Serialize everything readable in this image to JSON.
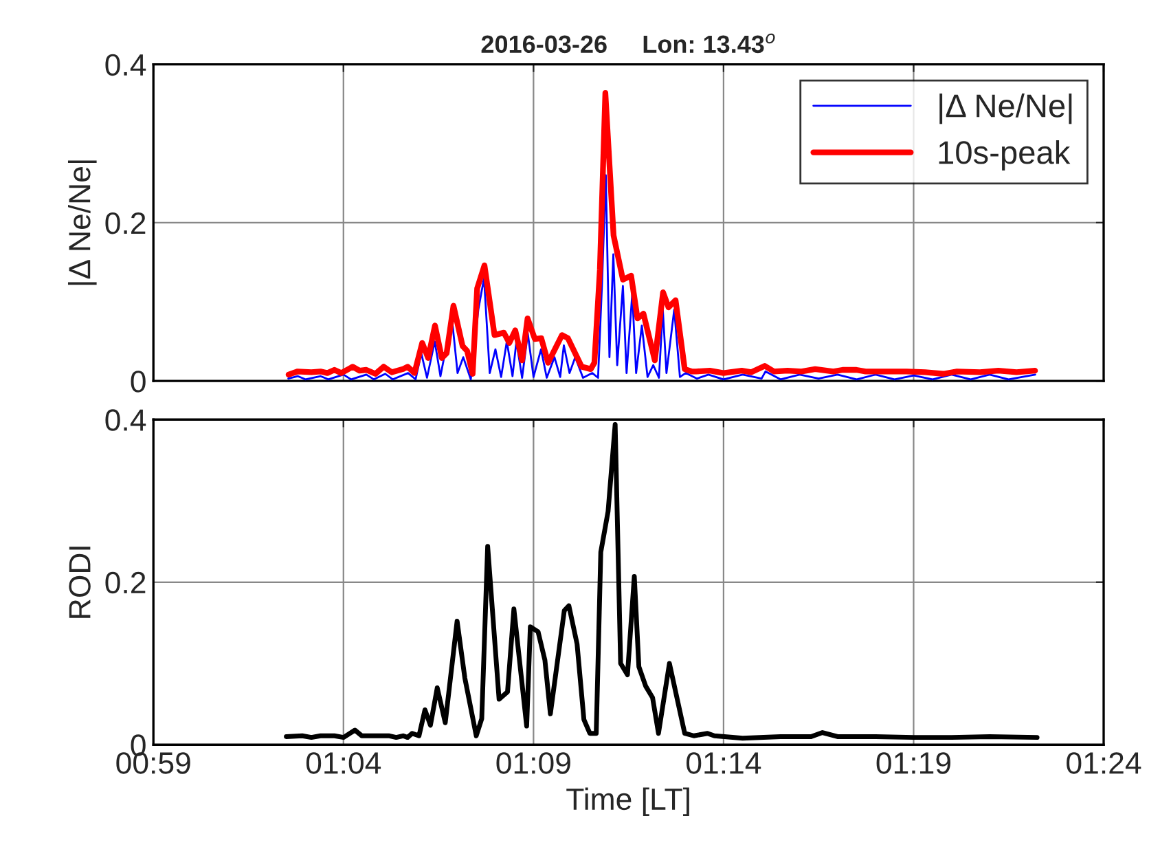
{
  "chart_data": [
    {
      "type": "line",
      "title": "2016-03-26     Lon: 13.43$^{o}$",
      "ylabel": "|Δ Ne/Ne|",
      "xlim": [
        0.983333,
        1.4
      ],
      "xticks": [
        {
          "value": 0.983333,
          "label": null
        },
        {
          "value": 1.066667,
          "label": null
        },
        {
          "value": 1.15,
          "label": null
        },
        {
          "value": 1.233333,
          "label": null
        },
        {
          "value": 1.316667,
          "label": null
        },
        {
          "value": 1.4,
          "label": null
        }
      ],
      "ylim": [
        0,
        0.4
      ],
      "yticks": [
        0,
        0.2,
        0.4
      ],
      "grid": true,
      "legend": "top right",
      "tick_labels": "y",
      "series": [
        {
          "name": "|Δ Ne/Ne|",
          "color": "#0000ff",
          "x": [
            1.0425,
            1.0467,
            1.05,
            1.0567,
            1.06,
            1.0667,
            1.07,
            1.0767,
            1.08,
            1.085,
            1.0883,
            1.095,
            1.0983,
            1.1008,
            1.1033,
            1.1067,
            1.1092,
            1.1142,
            1.1167,
            1.1192,
            1.1225,
            1.1258,
            1.1283,
            1.1308,
            1.1333,
            1.1358,
            1.1383,
            1.1408,
            1.1425,
            1.145,
            1.1475,
            1.15,
            1.1533,
            1.1558,
            1.1592,
            1.1617,
            1.1633,
            1.1658,
            1.1683,
            1.1717,
            1.1758,
            1.1783,
            1.18,
            1.1817,
            1.1833,
            1.185,
            1.1867,
            1.1892,
            1.1908,
            1.1933,
            1.195,
            1.1975,
            1.2,
            1.2025,
            1.205,
            1.2067,
            1.2083,
            1.2117,
            1.2142,
            1.2167,
            1.2217,
            1.2267,
            1.2333,
            1.2417,
            1.25,
            1.2517,
            1.2583,
            1.2667,
            1.275,
            1.2833,
            1.2917,
            1.3,
            1.3083,
            1.3167,
            1.325,
            1.3333,
            1.3417,
            1.35,
            1.3583,
            1.37
          ],
          "values": [
            0.003,
            0.006,
            0.002,
            0.006,
            0.002,
            0.008,
            0.002,
            0.008,
            0.002,
            0.009,
            0.002,
            0.01,
            0.002,
            0.035,
            0.004,
            0.05,
            0.006,
            0.08,
            0.01,
            0.03,
            0.002,
            0.09,
            0.13,
            0.01,
            0.04,
            0.005,
            0.05,
            0.006,
            0.05,
            0.004,
            0.06,
            0.005,
            0.04,
            0.004,
            0.03,
            0.005,
            0.045,
            0.01,
            0.03,
            0.004,
            0.01,
            0.004,
            0.12,
            0.26,
            0.03,
            0.16,
            0.02,
            0.12,
            0.01,
            0.11,
            0.01,
            0.07,
            0.005,
            0.02,
            0.004,
            0.09,
            0.01,
            0.09,
            0.005,
            0.01,
            0.003,
            0.008,
            0.002,
            0.008,
            0.003,
            0.012,
            0.002,
            0.008,
            0.003,
            0.008,
            0.002,
            0.008,
            0.002,
            0.007,
            0.002,
            0.008,
            0.002,
            0.008,
            0.002,
            0.008
          ]
        },
        {
          "name": "10s-peak",
          "color": "#ff0000",
          "x": [
            1.0426,
            1.0466,
            1.0526,
            1.0566,
            1.0596,
            1.0627,
            1.0657,
            1.0707,
            1.0737,
            1.0767,
            1.0807,
            1.0843,
            1.0878,
            1.0928,
            1.0948,
            1.0978,
            1.1012,
            1.1038,
            1.1068,
            1.1098,
            1.1119,
            1.1149,
            1.1189,
            1.1209,
            1.1233,
            1.1253,
            1.1285,
            1.1329,
            1.137,
            1.1394,
            1.142,
            1.145,
            1.1474,
            1.1506,
            1.1534,
            1.1564,
            1.1625,
            1.1651,
            1.1711,
            1.1751,
            1.1767,
            1.1791,
            1.1815,
            1.1851,
            1.1892,
            1.1928,
            1.1956,
            1.1982,
            1.2032,
            1.2068,
            1.2092,
            1.2123,
            1.2163,
            1.2193,
            1.2213,
            1.2273,
            1.2333,
            1.2413,
            1.2454,
            1.2514,
            1.2554,
            1.2614,
            1.2675,
            1.2735,
            1.2815,
            1.2855,
            1.2916,
            1.2956,
            1.3056,
            1.3136,
            1.3217,
            1.3297,
            1.3357,
            1.3458,
            1.3538,
            1.3618,
            1.3699
          ],
          "values": [
            0.008,
            0.012,
            0.011,
            0.012,
            0.01,
            0.014,
            0.01,
            0.018,
            0.013,
            0.014,
            0.009,
            0.018,
            0.011,
            0.015,
            0.018,
            0.01,
            0.048,
            0.029,
            0.07,
            0.029,
            0.035,
            0.095,
            0.044,
            0.038,
            0.009,
            0.117,
            0.146,
            0.058,
            0.061,
            0.048,
            0.064,
            0.026,
            0.079,
            0.053,
            0.054,
            0.023,
            0.058,
            0.054,
            0.018,
            0.015,
            0.023,
            0.14,
            0.364,
            0.184,
            0.128,
            0.133,
            0.079,
            0.085,
            0.026,
            0.112,
            0.093,
            0.102,
            0.015,
            0.012,
            0.012,
            0.013,
            0.01,
            0.013,
            0.011,
            0.019,
            0.012,
            0.013,
            0.012,
            0.015,
            0.012,
            0.014,
            0.014,
            0.012,
            0.012,
            0.012,
            0.011,
            0.009,
            0.012,
            0.011,
            0.013,
            0.011,
            0.013
          ]
        }
      ]
    },
    {
      "type": "line",
      "xlabel": "Time [LT]",
      "ylabel": "RODI",
      "xlim": [
        0.983333,
        1.4
      ],
      "xticks": [
        {
          "value": 0.983333,
          "label": "00:59"
        },
        {
          "value": 1.066667,
          "label": "01:04"
        },
        {
          "value": 1.15,
          "label": "01:09"
        },
        {
          "value": 1.233333,
          "label": "01:14"
        },
        {
          "value": 1.316667,
          "label": "01:19"
        },
        {
          "value": 1.4,
          "label": "01:24"
        }
      ],
      "ylim": [
        0,
        0.4
      ],
      "yticks": [
        0,
        0.2,
        0.4
      ],
      "grid": true,
      "series": [
        {
          "color": "#000000",
          "x": [
            1.0416,
            1.0486,
            1.0526,
            1.0566,
            1.0627,
            1.0667,
            1.0717,
            1.0747,
            1.0868,
            1.0898,
            1.0928,
            1.0948,
            1.0968,
            1.0998,
            1.1024,
            1.1048,
            1.1078,
            1.1113,
            1.1165,
            1.1199,
            1.1249,
            1.1273,
            1.1299,
            1.1349,
            1.1386,
            1.1414,
            1.147,
            1.1486,
            1.152,
            1.155,
            1.1574,
            1.1635,
            1.1655,
            1.1691,
            1.1721,
            1.1747,
            1.1775,
            1.1795,
            1.1827,
            1.1858,
            1.1882,
            1.1912,
            1.1942,
            1.1962,
            1.1992,
            1.2022,
            1.2048,
            1.2096,
            1.2163,
            1.2203,
            1.2263,
            1.2293,
            1.2417,
            1.2583,
            1.2717,
            1.2767,
            1.2833,
            1.3,
            1.3167,
            1.3333,
            1.35,
            1.3708
          ],
          "values": [
            0.01,
            0.011,
            0.009,
            0.011,
            0.011,
            0.009,
            0.018,
            0.011,
            0.011,
            0.009,
            0.011,
            0.009,
            0.014,
            0.011,
            0.043,
            0.024,
            0.07,
            0.027,
            0.152,
            0.082,
            0.011,
            0.032,
            0.244,
            0.056,
            0.065,
            0.167,
            0.023,
            0.145,
            0.139,
            0.104,
            0.038,
            0.165,
            0.171,
            0.124,
            0.031,
            0.014,
            0.014,
            0.237,
            0.287,
            0.394,
            0.1,
            0.086,
            0.207,
            0.096,
            0.072,
            0.058,
            0.014,
            0.1,
            0.014,
            0.011,
            0.014,
            0.011,
            0.008,
            0.01,
            0.01,
            0.015,
            0.01,
            0.01,
            0.009,
            0.009,
            0.01,
            0.009
          ]
        }
      ]
    }
  ]
}
